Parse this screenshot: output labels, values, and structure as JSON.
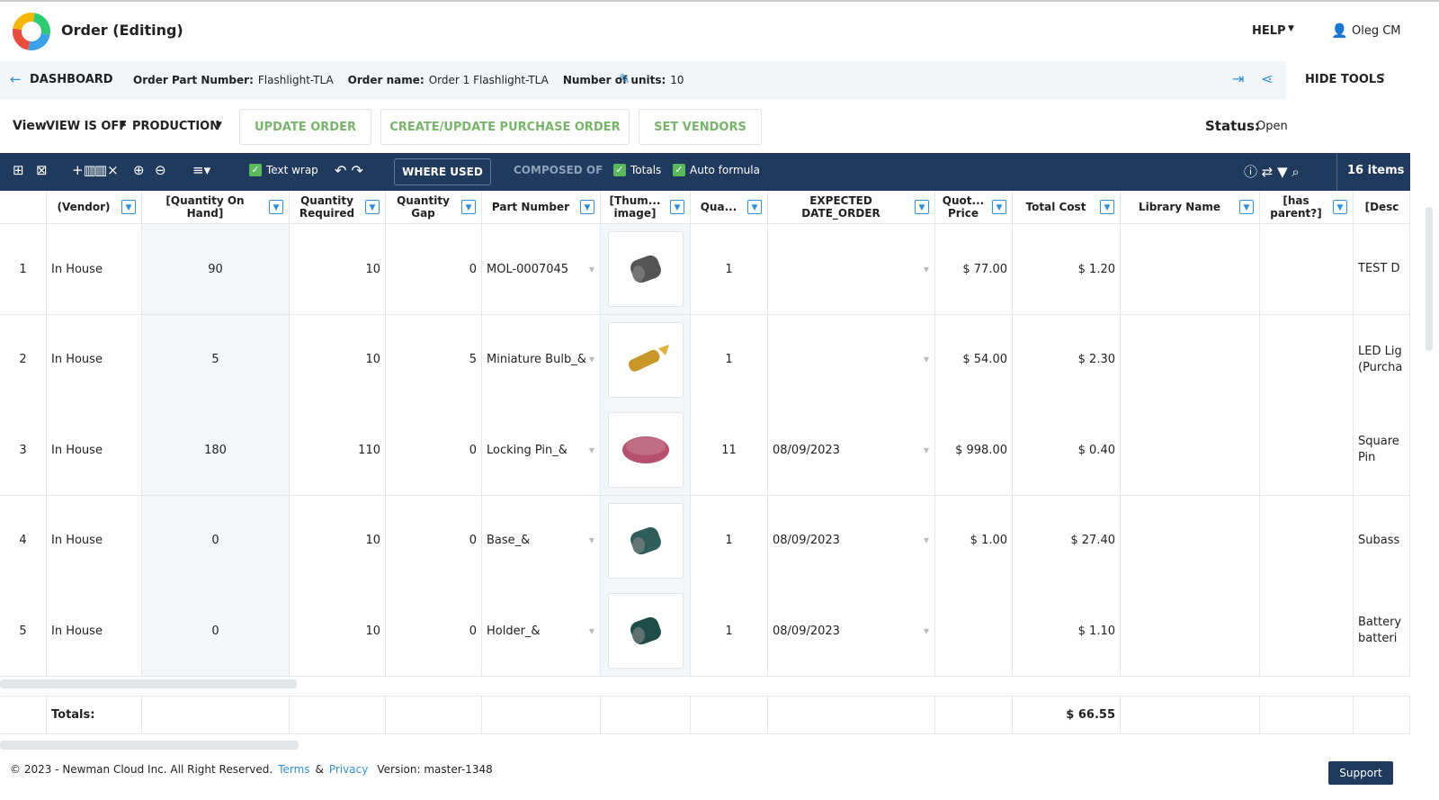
{
  "header": {
    "title": "Order (Editing)",
    "help": "HELP",
    "user": "Oleg CM"
  },
  "subheader": {
    "back": "DASHBOARD",
    "fields": [
      {
        "label": "Order Part Number:",
        "value": "Flashlight-TLA"
      },
      {
        "label": "Order name:",
        "value": "Order 1 Flashlight-TLA"
      },
      {
        "label": "Number of units:",
        "value": "10"
      }
    ],
    "hide_tools": "HIDE TOOLS"
  },
  "actions": {
    "view_label": "View",
    "view_value": "VIEW IS OFF",
    "mode": "PRODUCTION",
    "buttons": [
      "UPDATE ORDER",
      "CREATE/UPDATE PURCHASE ORDER",
      "SET VENDORS"
    ],
    "status_label": "Status:",
    "status_value": "Open"
  },
  "toolbar": {
    "text_wrap": "Text wrap",
    "where_used": "WHERE USED",
    "composed_of": "COMPOSED OF",
    "totals": "Totals",
    "auto_formula": "Auto formula",
    "items": "16 items"
  },
  "table": {
    "columns": [
      "(Vendor)",
      "[Quantity On Hand]",
      "Quantity Required",
      "Quantity Gap",
      "Part Number",
      "[Thum... image]",
      "Qua...",
      "EXPECTED DATE_ORDER",
      "Quot... Price",
      "Total Cost",
      "Library Name",
      "[has parent?]",
      "[Desc"
    ],
    "rows": [
      {
        "no": "1",
        "vendor": "In House",
        "qoh": "90",
        "qreq": "10",
        "gap": "0",
        "part": "MOL-0007045",
        "qty": "1",
        "price": "$ 77.00",
        "cost": "$ 1.20",
        "desc": "TEST D"
      },
      {
        "no": "2",
        "vendor": "In House",
        "qoh": "5",
        "qreq": "10",
        "gap": "5",
        "part": "Miniature Bulb_&",
        "qty": "1",
        "price": "$ 54.00",
        "cost": "$ 2.30",
        "desc": "LED Lig (Purcha"
      },
      {
        "no": "3",
        "vendor": "In House",
        "qoh": "180",
        "qreq": "110",
        "gap": "0",
        "part": "Locking Pin_&",
        "qty": "11",
        "date": "08/09/2023",
        "price": "$ 998.00",
        "cost": "$ 0.40",
        "desc": "Square Pin"
      },
      {
        "no": "4",
        "vendor": "In House",
        "qoh": "0",
        "qreq": "10",
        "gap": "0",
        "part": "Base_&",
        "qty": "1",
        "date": "08/09/2023",
        "price": "$ 1.00",
        "cost": "$ 27.40",
        "desc": "Subass"
      },
      {
        "no": "5",
        "vendor": "In House",
        "qoh": "0",
        "qreq": "10",
        "gap": "0",
        "part": "Holder_&",
        "qty": "1",
        "date": "08/09/2023",
        "cost": "$ 1.10",
        "desc": "Battery batteri"
      }
    ],
    "totals_label": "Totals:",
    "total_cost": "$ 66.55"
  },
  "footer": {
    "copyright": "© 2023 - Newman Cloud Inc. All Right Reserved.",
    "terms": "Terms",
    "and": "&",
    "privacy": "Privacy",
    "version": "Version: master-1348",
    "support": "Support"
  }
}
